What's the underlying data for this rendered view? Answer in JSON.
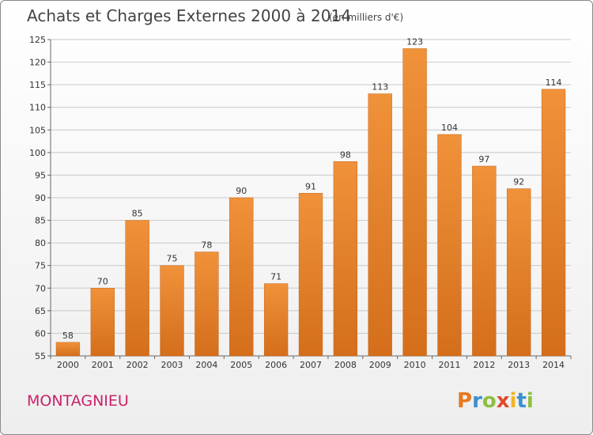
{
  "chart_data": {
    "type": "bar",
    "title": "Achats et Charges Externes 2000 à 2014",
    "subtitle": "(en milliers d'€)",
    "categories": [
      "2000",
      "2001",
      "2002",
      "2003",
      "2004",
      "2005",
      "2006",
      "2007",
      "2008",
      "2009",
      "2010",
      "2011",
      "2012",
      "2013",
      "2014"
    ],
    "values": [
      58,
      70,
      85,
      75,
      78,
      90,
      71,
      91,
      98,
      113,
      123,
      104,
      97,
      92,
      114
    ],
    "xlabel": "",
    "ylabel": "",
    "ylim": [
      55,
      125
    ],
    "yticks": [
      55,
      60,
      65,
      70,
      75,
      80,
      85,
      90,
      95,
      100,
      105,
      110,
      115,
      120,
      125
    ],
    "grid": true,
    "bar_color": "#f0923a",
    "bar_color_dark": "#d46e1b"
  },
  "location": "MONTAGNIEU",
  "brand": {
    "letters": [
      "P",
      "r",
      "o",
      "x",
      "i",
      "t",
      "i"
    ],
    "colors": [
      "#e8791f",
      "#3a8fcf",
      "#8cbf3f",
      "#e04a2a",
      "#f2b41f",
      "#3a8fcf",
      "#8cbf3f"
    ]
  }
}
